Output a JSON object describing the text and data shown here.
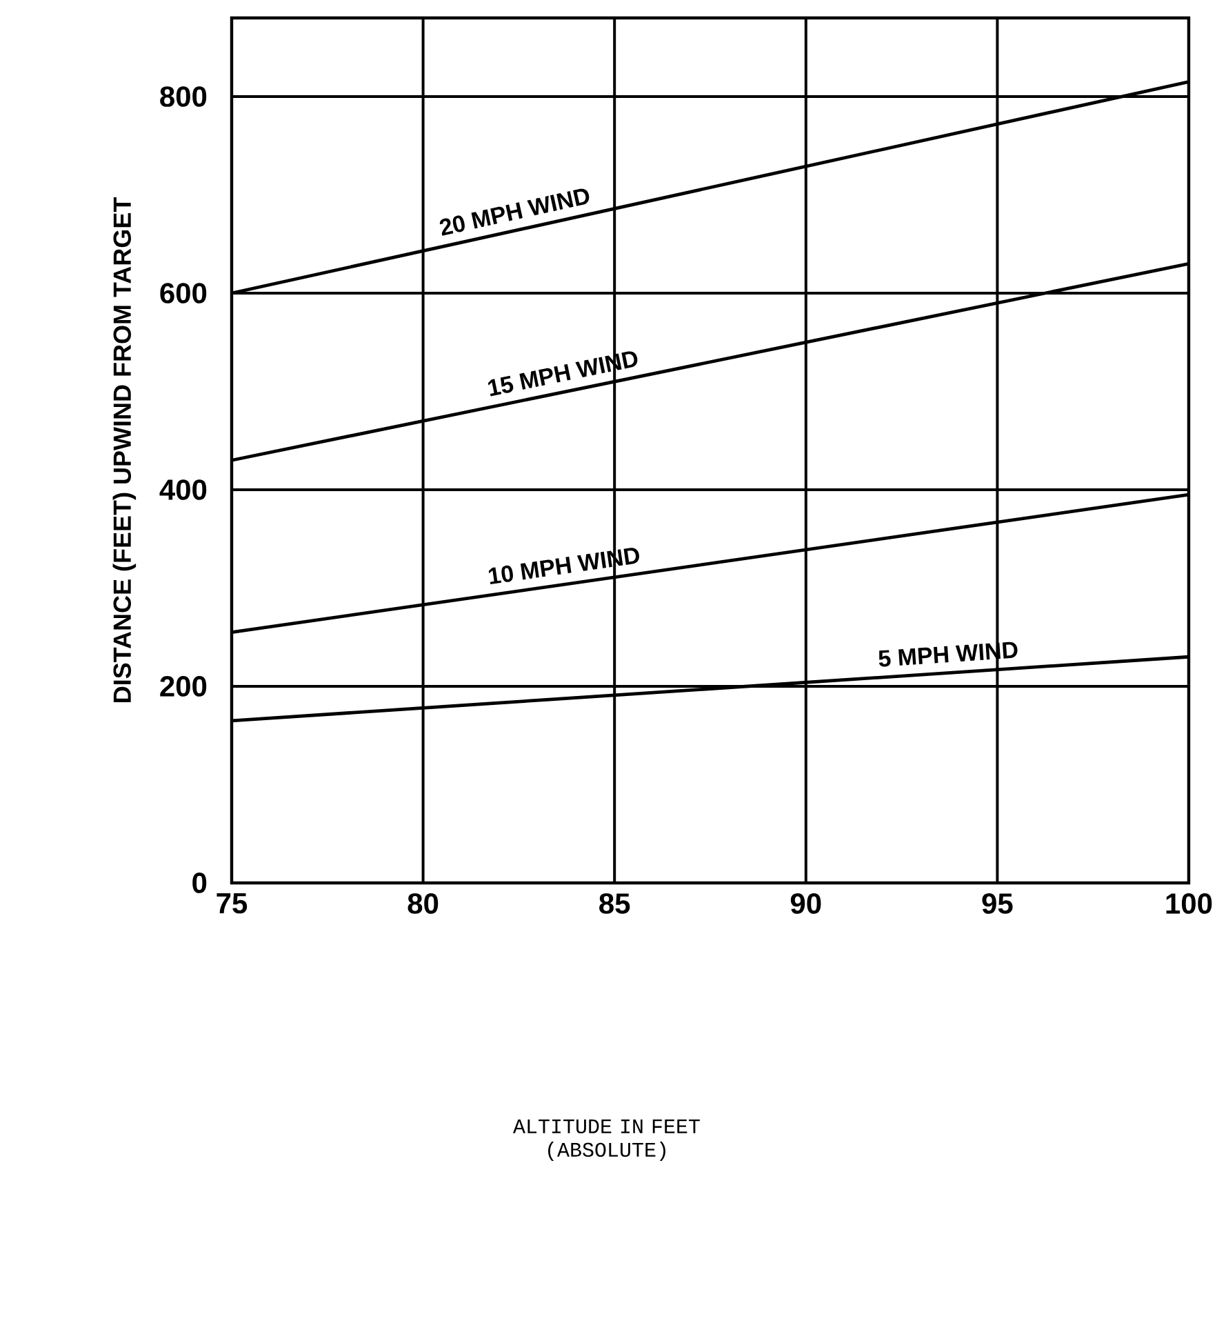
{
  "chart_data": {
    "type": "line",
    "annotations": [
      "ALTITUDE IN FEET (ABSOLUTE)"
    ],
    "ylabel": "DISTANCE (FEET) UPWIND FROM TARGET",
    "x": [
      75,
      100
    ],
    "xlim": [
      75,
      100
    ],
    "ylim": [
      0,
      880
    ],
    "xticks": [
      75,
      80,
      85,
      90,
      95,
      100
    ],
    "yticks": [
      0,
      200,
      400,
      600,
      800
    ],
    "grid": true,
    "marker": "none",
    "line_style": "solid",
    "series": [
      {
        "name": "20 MPH WIND",
        "color": "#000000",
        "values": [
          600,
          815
        ]
      },
      {
        "name": "15 MPH WIND",
        "color": "#000000",
        "values": [
          430,
          630
        ]
      },
      {
        "name": "10 MPH WIND",
        "color": "#000000",
        "values": [
          255,
          395
        ]
      },
      {
        "name": "5 MPH WIND",
        "color": "#000000",
        "values": [
          165,
          230
        ]
      }
    ]
  }
}
